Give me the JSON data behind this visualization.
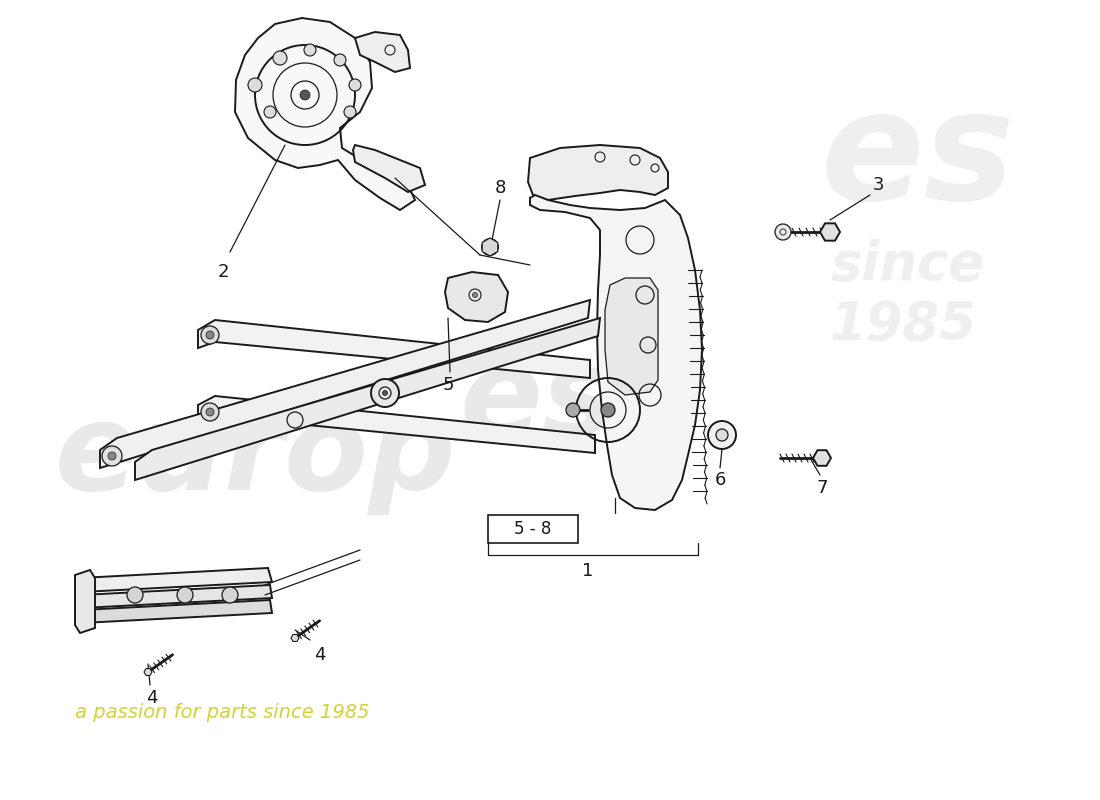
{
  "background_color": "#ffffff",
  "line_color": "#1a1a1a",
  "lw_main": 1.4,
  "lw_thin": 0.9,
  "lw_thick": 2.0,
  "watermark_color": "#c0c0c0",
  "watermark_alpha": 0.35,
  "tagline_color": "#c8c800",
  "tagline_alpha": 0.8,
  "label_fontsize": 13,
  "parts": {
    "1_box_text": "5 - 8",
    "1_label": "1",
    "2_label": "2",
    "3_label": "3",
    "4_label": "4",
    "5_label": "5",
    "6_label": "6",
    "7_label": "7",
    "8_label": "8"
  },
  "tagline": "a passion for parts since 1985"
}
